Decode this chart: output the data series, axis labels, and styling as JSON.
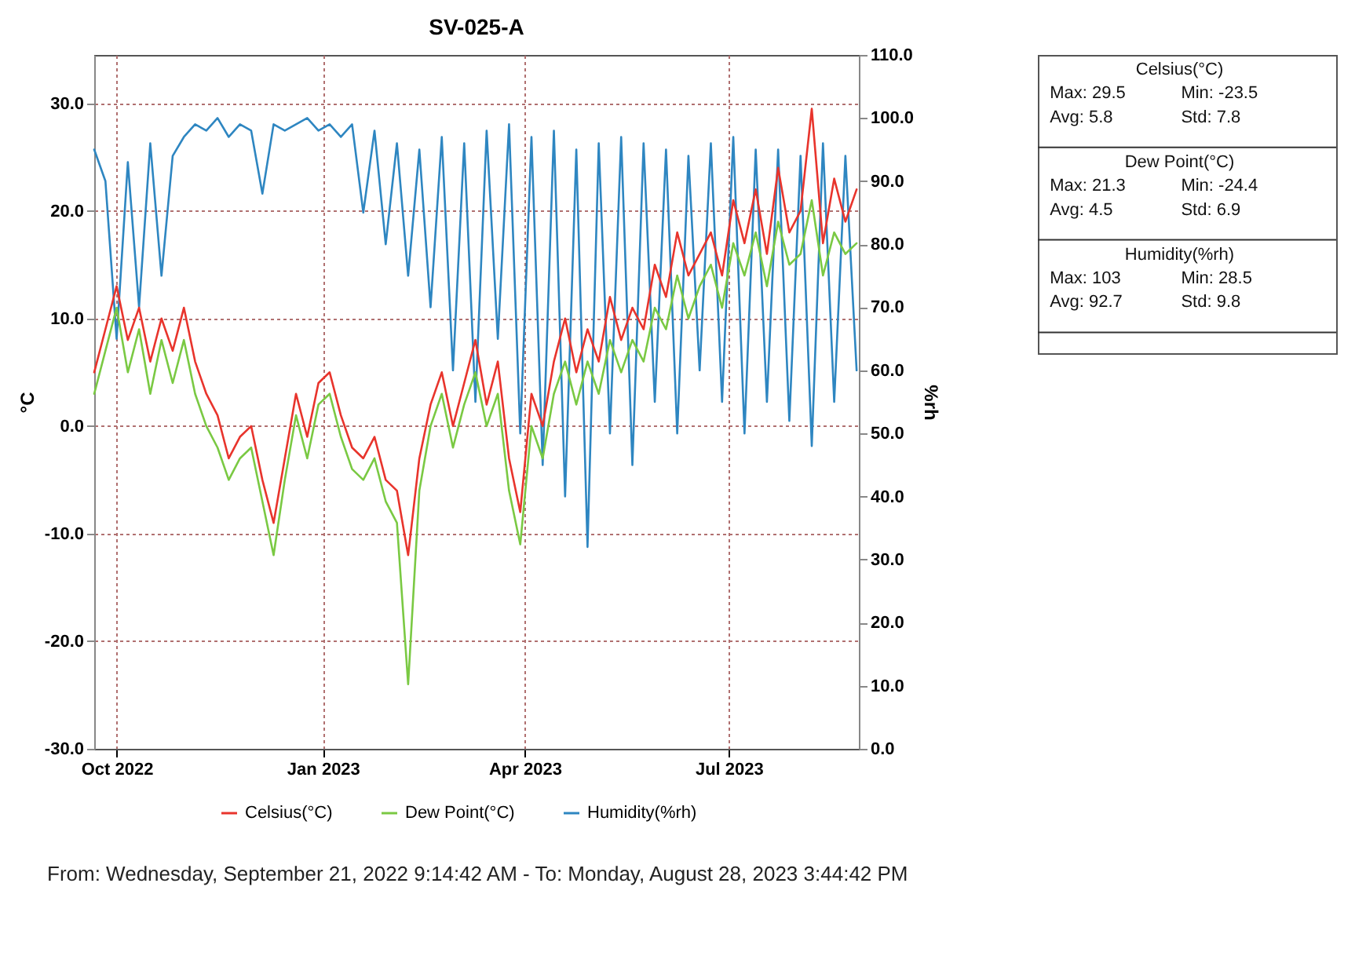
{
  "chart_data": [
    {
      "type": "line",
      "title": "SV-025-A",
      "ylabel": "°C",
      "y2label": "%rh",
      "x": [
        "2022-09-21",
        "2022-09-26",
        "2022-10-01",
        "2022-10-06",
        "2022-10-11",
        "2022-10-16",
        "2022-10-21",
        "2022-10-26",
        "2022-10-31",
        "2022-11-05",
        "2022-11-10",
        "2022-11-15",
        "2022-11-20",
        "2022-11-25",
        "2022-11-30",
        "2022-12-05",
        "2022-12-10",
        "2022-12-15",
        "2022-12-20",
        "2022-12-25",
        "2022-12-30",
        "2023-01-04",
        "2023-01-09",
        "2023-01-14",
        "2023-01-19",
        "2023-01-24",
        "2023-01-29",
        "2023-02-03",
        "2023-02-08",
        "2023-02-13",
        "2023-02-18",
        "2023-02-23",
        "2023-02-28",
        "2023-03-05",
        "2023-03-10",
        "2023-03-15",
        "2023-03-20",
        "2023-03-25",
        "2023-03-30",
        "2023-04-04",
        "2023-04-09",
        "2023-04-14",
        "2023-04-19",
        "2023-04-24",
        "2023-04-29",
        "2023-05-04",
        "2023-05-09",
        "2023-05-14",
        "2023-05-19",
        "2023-05-24",
        "2023-05-29",
        "2023-06-03",
        "2023-06-08",
        "2023-06-13",
        "2023-06-18",
        "2023-06-23",
        "2023-06-28",
        "2023-07-03",
        "2023-07-08",
        "2023-07-13",
        "2023-07-18",
        "2023-07-23",
        "2023-07-28",
        "2023-08-02",
        "2023-08-07",
        "2023-08-12",
        "2023-08-17",
        "2023-08-22",
        "2023-08-27"
      ],
      "series": [
        {
          "name": "Celsius(°C)",
          "color": "#e8342c",
          "values": [
            5,
            9,
            13,
            8,
            11,
            6,
            10,
            7,
            11,
            6,
            3,
            1,
            -3,
            -1,
            0,
            -5,
            -9,
            -3,
            3,
            -1,
            4,
            5,
            1,
            -2,
            -3,
            -1,
            -5,
            -6,
            -12,
            -3,
            2,
            5,
            0,
            4,
            8,
            2,
            6,
            -3,
            -8,
            3,
            0,
            6,
            10,
            5,
            9,
            6,
            12,
            8,
            11,
            9,
            15,
            12,
            18,
            14,
            16,
            18,
            14,
            21,
            17,
            22,
            16,
            24,
            18,
            20,
            29.5,
            17,
            23,
            19,
            22
          ]
        },
        {
          "name": "Dew Point(°C)",
          "color": "#7ac943",
          "values": [
            3,
            7,
            11,
            5,
            9,
            3,
            8,
            4,
            8,
            3,
            0,
            -2,
            -5,
            -3,
            -2,
            -7,
            -12,
            -5,
            1,
            -3,
            2,
            3,
            -1,
            -4,
            -5,
            -3,
            -7,
            -9,
            -24,
            -6,
            0,
            3,
            -2,
            2,
            5,
            0,
            3,
            -6,
            -11,
            0,
            -3,
            3,
            6,
            2,
            6,
            3,
            8,
            5,
            8,
            6,
            11,
            9,
            14,
            10,
            13,
            15,
            11,
            17,
            14,
            18,
            13,
            19,
            15,
            16,
            21,
            14,
            18,
            16,
            17
          ]
        },
        {
          "name": "Humidity(%rh)",
          "color": "#2e86c1",
          "axis": "y2",
          "values": [
            95,
            90,
            65,
            93,
            70,
            96,
            75,
            94,
            97,
            99,
            98,
            100,
            97,
            99,
            98,
            88,
            99,
            98,
            99,
            100,
            98,
            99,
            97,
            99,
            85,
            98,
            80,
            96,
            75,
            95,
            70,
            97,
            60,
            96,
            55,
            98,
            65,
            99,
            50,
            97,
            45,
            98,
            40,
            95,
            32,
            96,
            50,
            97,
            45,
            96,
            55,
            95,
            50,
            94,
            60,
            96,
            55,
            97,
            50,
            95,
            55,
            95,
            52,
            94,
            48,
            96,
            55,
            94,
            60
          ]
        }
      ],
      "xlim": [
        "2022-09-21",
        "2023-08-28"
      ],
      "xticks": [
        {
          "value": "2022-10-01",
          "label": "Oct 2022"
        },
        {
          "value": "2023-01-01",
          "label": "Jan 2023"
        },
        {
          "value": "2023-04-01",
          "label": "Apr 2023"
        },
        {
          "value": "2023-07-01",
          "label": "Jul 2023"
        }
      ],
      "ylim": [
        -30,
        34.5
      ],
      "yticks": [
        {
          "value": -30,
          "label": "-30.0"
        },
        {
          "value": -20,
          "label": "-20.0"
        },
        {
          "value": -10,
          "label": "-10.0"
        },
        {
          "value": 0,
          "label": "0.0"
        },
        {
          "value": 10,
          "label": "10.0"
        },
        {
          "value": 20,
          "label": "20.0"
        },
        {
          "value": 30,
          "label": "30.0"
        }
      ],
      "y2lim": [
        0,
        110
      ],
      "y2ticks": [
        {
          "value": 0,
          "label": "0.0"
        },
        {
          "value": 10,
          "label": "10.0"
        },
        {
          "value": 20,
          "label": "20.0"
        },
        {
          "value": 30,
          "label": "30.0"
        },
        {
          "value": 40,
          "label": "40.0"
        },
        {
          "value": 50,
          "label": "50.0"
        },
        {
          "value": 60,
          "label": "60.0"
        },
        {
          "value": 70,
          "label": "70.0"
        },
        {
          "value": 80,
          "label": "80.0"
        },
        {
          "value": 90,
          "label": "90.0"
        },
        {
          "value": 100,
          "label": "100.0"
        },
        {
          "value": 110,
          "label": "110.0"
        }
      ],
      "grid": true,
      "legend": "bottom",
      "marker": "none",
      "line_style": "solid",
      "annotations": [
        "From: Wednesday, September 21, 2022 9:14:42 AM  -  To: Monday, August 28, 2023 3:44:42 PM"
      ]
    },
    {
      "type": "other",
      "annotations": [
        "Celsius(°C)",
        "Max: 29.5",
        "Min: -23.5",
        "Avg: 5.8",
        "Std: 7.8",
        "Dew Point(°C)",
        "Max: 21.3",
        "Min: -24.4",
        "Avg: 4.5",
        "Std: 6.9",
        "Humidity(%rh)",
        "Max: 103",
        "Min: 28.5",
        "Avg: 92.7",
        "Std: 9.8"
      ]
    }
  ]
}
